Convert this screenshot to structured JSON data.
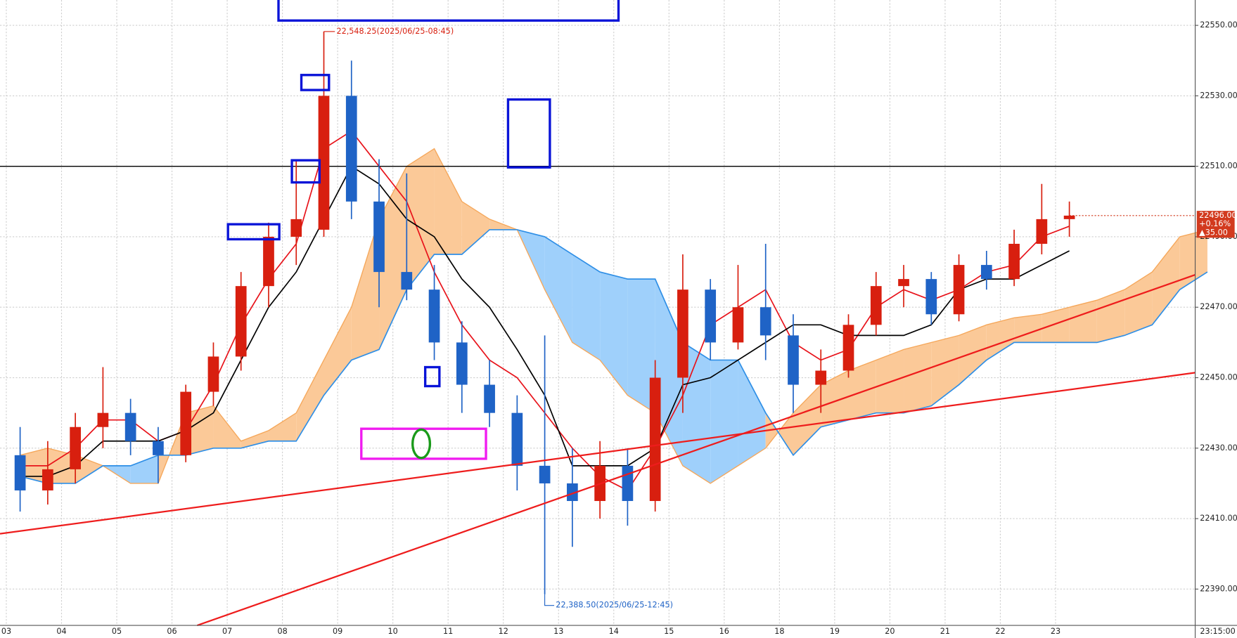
{
  "chart_data": {
    "type": "candlestick",
    "categories": [
      "03",
      null,
      "04",
      null,
      "05",
      null,
      "06",
      null,
      "07",
      null,
      "08",
      null,
      "09",
      null,
      "10",
      null,
      "11",
      null,
      "12",
      null,
      "13",
      null,
      "14",
      null,
      "15",
      null,
      "16",
      null,
      "18",
      null,
      "19",
      null,
      "20",
      null,
      "21",
      null,
      "22",
      null,
      "23",
      null,
      null,
      null,
      null,
      null
    ],
    "open": [
      22428,
      22418,
      22424,
      22436,
      22440,
      22432,
      22428,
      22446,
      22456,
      22476,
      22490,
      22492,
      22530,
      22500,
      22480,
      22475,
      22460,
      22448,
      22440,
      22425,
      22420,
      22415,
      22425,
      22415,
      22450,
      22475,
      22460,
      22470,
      22462,
      22448,
      22452,
      22465,
      22476,
      22478,
      22468,
      22482,
      22478,
      22488,
      22495,
      null,
      null,
      null,
      null,
      null
    ],
    "high": [
      22436,
      22432,
      22440,
      22453,
      22444,
      22436,
      22448,
      22460,
      22480,
      22494,
      22512,
      22548.25,
      22540,
      22512,
      22508,
      22482,
      22466,
      22455,
      22445,
      22462,
      22430,
      22432,
      22430,
      22455,
      22485,
      22478,
      22482,
      22488,
      22468,
      22458,
      22468,
      22480,
      22482,
      22480,
      22485,
      22486,
      22492,
      22505,
      22500,
      null,
      null,
      null,
      null,
      null
    ],
    "low": [
      22412,
      22414,
      22420,
      22430,
      22428,
      22420,
      22426,
      22442,
      22452,
      22470,
      22482,
      22490,
      22495,
      22470,
      22472,
      22455,
      22440,
      22436,
      22418,
      22388.5,
      22402,
      22410,
      22408,
      22412,
      22440,
      22455,
      22458,
      22455,
      22440,
      22440,
      22450,
      22462,
      22470,
      22465,
      22466,
      22475,
      22476,
      22485,
      22490,
      null,
      null,
      null,
      null,
      null
    ],
    "close": [
      22418,
      22424,
      22436,
      22440,
      22432,
      22428,
      22446,
      22456,
      22476,
      22490,
      22495,
      22530,
      22500,
      22480,
      22475,
      22460,
      22448,
      22440,
      22425,
      22420,
      22415,
      22425,
      22415,
      22450,
      22475,
      22460,
      22470,
      22462,
      22448,
      22452,
      22465,
      22476,
      22478,
      22468,
      22482,
      22478,
      22488,
      22495,
      22496,
      null,
      null,
      null,
      null,
      null
    ],
    "up_color": "#d81f0f",
    "down_color": "#1f63c6",
    "overlays": [
      {
        "color": "#e8121a",
        "values": [
          22425,
          22425,
          22430,
          22438,
          22438,
          22432,
          22435,
          22448,
          22465,
          22478,
          22488,
          22515,
          22520,
          22510,
          22500,
          22480,
          22465,
          22455,
          22450,
          22440,
          22430,
          22422,
          22418,
          22430,
          22445,
          22465,
          22470,
          22475,
          22460,
          22455,
          22458,
          22470,
          22475,
          22472,
          22475,
          22480,
          22482,
          22490,
          22493,
          null,
          null,
          null,
          null,
          null
        ]
      },
      {
        "color": "#000000",
        "values": [
          22422,
          22422,
          22425,
          22432,
          22432,
          22432,
          22435,
          22440,
          22455,
          22470,
          22480,
          22495,
          22510,
          22505,
          22495,
          22490,
          22478,
          22470,
          22458,
          22445,
          22425,
          22425,
          22425,
          22430,
          22448,
          22450,
          22455,
          22460,
          22465,
          22465,
          22462,
          22462,
          22462,
          22465,
          22475,
          22478,
          22478,
          22482,
          22486,
          null,
          null,
          null,
          null,
          null
        ]
      }
    ],
    "cloud": {
      "span_a": [
        22428,
        22430,
        22428,
        22425,
        22420,
        22420,
        22440,
        22442,
        22432,
        22435,
        22440,
        22455,
        22470,
        22495,
        22510,
        22515,
        22500,
        22495,
        22492,
        22475,
        22460,
        22455,
        22445,
        22440,
        22425,
        22420,
        22425,
        22430,
        22440,
        22448,
        22452,
        22455,
        22458,
        22460,
        22462,
        22465,
        22467,
        22468,
        22470,
        22472,
        22475,
        22480,
        22490,
        22492
      ],
      "span_b": [
        22422,
        22420,
        22420,
        22425,
        22425,
        22428,
        22428,
        22430,
        22430,
        22432,
        22432,
        22445,
        22455,
        22458,
        22475,
        22485,
        22485,
        22492,
        22492,
        22490,
        22485,
        22480,
        22478,
        22478,
        22460,
        22455,
        22455,
        22440,
        22428,
        22436,
        22438,
        22440,
        22440,
        22442,
        22448,
        22455,
        22460,
        22460,
        22460,
        22460,
        22462,
        22465,
        22475,
        22480
      ],
      "a_fill": "#fbc998",
      "b_fill": "#9fd0fb",
      "a_line": "#f5a75a",
      "b_line": "#2f8fe6"
    },
    "hline": {
      "value": 22510,
      "color": "#000000"
    },
    "ylim": [
      22379.7,
      22557.2
    ],
    "yticks": [
      {
        "value": 22390,
        "label": "22390.00"
      },
      {
        "value": 22410,
        "label": "22410.00"
      },
      {
        "value": 22430,
        "label": "22430.00"
      },
      {
        "value": 22450,
        "label": "22450.00"
      },
      {
        "value": 22470,
        "label": "22470.00"
      },
      {
        "value": 22490,
        "label": "22490.00"
      },
      {
        "value": 22510,
        "label": "22510.00"
      },
      {
        "value": 22530,
        "label": "22530.00"
      },
      {
        "value": 22550,
        "label": "22550.00"
      }
    ],
    "grid": true,
    "high_label": "22,548.25(2025/06/25-08:45)",
    "low_label": "22,388.50(2025/06/25-12:45)",
    "last_price": {
      "price": "22496.00",
      "change": "+0.16%",
      "diff": "▲35.00"
    },
    "time_label": "23:15:00"
  }
}
